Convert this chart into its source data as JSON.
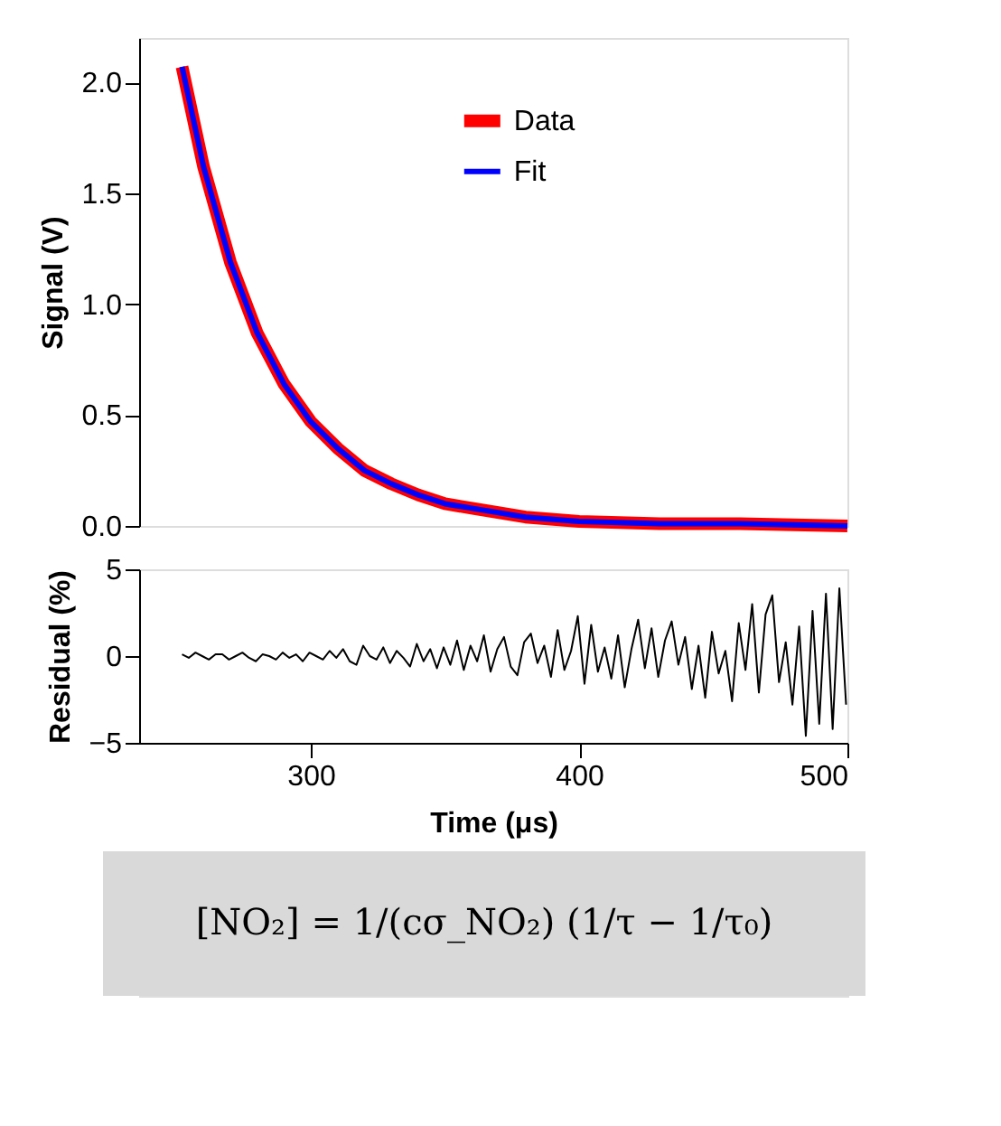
{
  "chart_data": [
    {
      "type": "line",
      "ylabel": "Signal (V)",
      "xlim": [
        236,
        500
      ],
      "ylim": [
        0,
        2.2
      ],
      "yticks": [
        {
          "value": 0,
          "label": "0.0"
        },
        {
          "value": 0.5,
          "label": "0.5"
        },
        {
          "value": 1,
          "label": "1.0"
        },
        {
          "value": 1.5,
          "label": "1.5"
        },
        {
          "value": 2,
          "label": "2.0"
        }
      ],
      "tick_labels": "y",
      "legend": "top right",
      "grid": false,
      "x": [
        252,
        260,
        270,
        280,
        290,
        300,
        310,
        320,
        330,
        340,
        350,
        360,
        380,
        400,
        430,
        460,
        500
      ],
      "series": [
        {
          "name": "Data",
          "color": "#ff0000",
          "values": [
            2.07,
            1.62,
            1.19,
            0.87,
            0.64,
            0.47,
            0.35,
            0.25,
            0.19,
            0.14,
            0.1,
            0.08,
            0.04,
            0.02,
            0.01,
            0.01,
            0.0
          ]
        },
        {
          "name": "Fit",
          "color": "#0000ff",
          "values": [
            2.07,
            1.62,
            1.19,
            0.87,
            0.64,
            0.47,
            0.35,
            0.25,
            0.19,
            0.14,
            0.1,
            0.08,
            0.04,
            0.02,
            0.01,
            0.01,
            0.0
          ]
        }
      ]
    },
    {
      "type": "line",
      "ylabel": "Residual (%)",
      "xlabel": "Time (μs)",
      "xlim": [
        236,
        500
      ],
      "ylim": [
        -5,
        5
      ],
      "yticks": [
        -5,
        0,
        5
      ],
      "xticks": [
        300,
        400,
        500
      ],
      "grid": false,
      "annotations": [
        "[NO₂] = 1/(cσ_NO₂) (1/τ − 1/τ₀)"
      ],
      "x": [
        252,
        254.5,
        257,
        259.5,
        262,
        264.5,
        267,
        269.5,
        272,
        274.5,
        277,
        279.5,
        282,
        284.5,
        287,
        289.5,
        292,
        294.5,
        297,
        299.5,
        302,
        304.5,
        307,
        309.5,
        312,
        314.5,
        317,
        319.5,
        322,
        324.5,
        327,
        329.5,
        332,
        334.5,
        337,
        339.5,
        342,
        344.5,
        347,
        349.5,
        352,
        354.5,
        357,
        359.5,
        362,
        364.5,
        367,
        369.5,
        372,
        374.5,
        377,
        379.5,
        382,
        384.5,
        387,
        389.5,
        392,
        394.5,
        397,
        399.5,
        402,
        404.5,
        407,
        409.5,
        412,
        414.5,
        417,
        419.5,
        422,
        424.5,
        427,
        429.5,
        432,
        434.5,
        437,
        439.5,
        442,
        444.5,
        447,
        449.5,
        452,
        454.5,
        457,
        459.5,
        462,
        464.5,
        467,
        469.5,
        472,
        474.5,
        477,
        479.5,
        482,
        484.5,
        487,
        489.5,
        492,
        494.5,
        497,
        499.5
      ],
      "series": [
        {
          "color": "#000000",
          "values": [
            0.1,
            -0.1,
            0.2,
            0,
            -0.2,
            0.1,
            0.1,
            -0.2,
            0,
            0.2,
            -0.1,
            -0.3,
            0.1,
            0,
            -0.2,
            0.2,
            -0.1,
            0.1,
            -0.3,
            0.2,
            0,
            -0.2,
            0.3,
            -0.1,
            0.4,
            -0.3,
            -0.5,
            0.6,
            0,
            -0.2,
            0.5,
            -0.4,
            0.3,
            -0.1,
            -0.6,
            0.7,
            -0.3,
            0.4,
            -0.7,
            0.5,
            -0.5,
            0.9,
            -0.8,
            0.6,
            -0.3,
            1.2,
            -0.9,
            0.4,
            1.1,
            -0.6,
            -1.1,
            0.8,
            1.3,
            -0.4,
            0.6,
            -1.2,
            1.5,
            -0.8,
            0.3,
            2.3,
            -1.6,
            1.8,
            -0.9,
            0.5,
            -1.3,
            1.2,
            -1.8,
            0.4,
            2.1,
            -0.7,
            1.6,
            -1.2,
            0.9,
            2.0,
            -0.5,
            1.1,
            -1.9,
            0.6,
            -2.4,
            1.4,
            -1.0,
            0.3,
            -2.6,
            1.9,
            -0.8,
            3.0,
            -2.1,
            2.4,
            3.5,
            -1.5,
            0.8,
            -2.8,
            1.7,
            -4.6,
            2.6,
            -3.9,
            3.6,
            -4.2,
            3.9,
            -2.8
          ]
        }
      ]
    }
  ]
}
